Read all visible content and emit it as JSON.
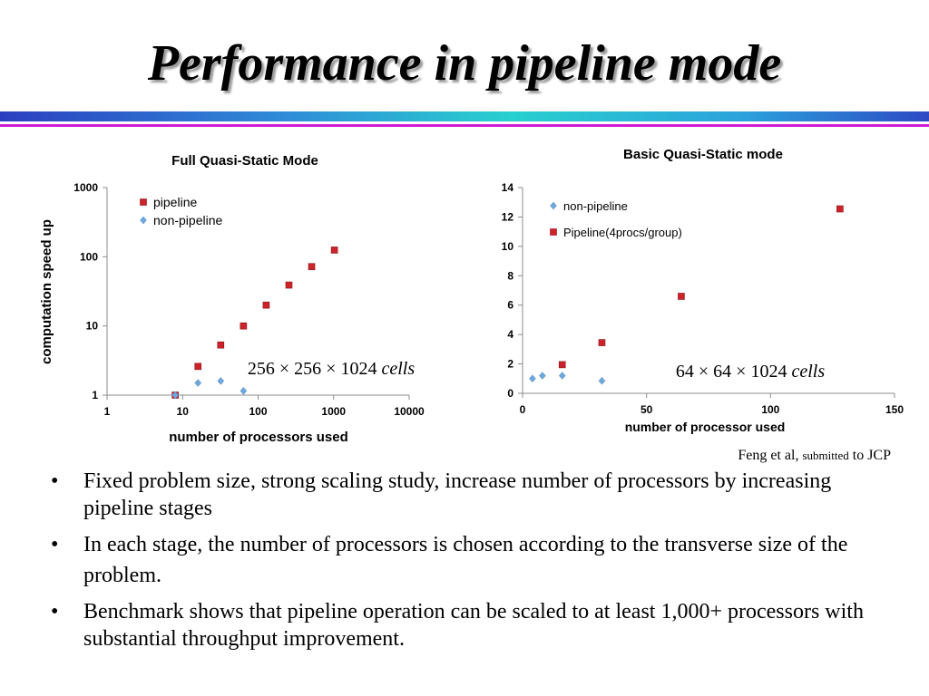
{
  "slide": {
    "title": "Performance in pipeline mode",
    "citation": {
      "author": "Feng et al,",
      "status": "submitted",
      "venue": "to JCP"
    },
    "bullets": [
      "Fixed problem size, strong scaling study, increase number of processors by increasing pipeline stages",
      "In each stage, the number of processors is chosen according to the transverse size of the problem.",
      "Benchmark shows that pipeline operation can be scaled to at least 1,000+ processors with substantial throughput improvement."
    ],
    "bullet_symbol": "•",
    "colors": {
      "pipeline": "#cc2229",
      "non_pipeline": "#6fa8dc",
      "rule_magenta": "#cf1bd3",
      "rule_blue": "#2f8ad8"
    }
  },
  "chart_data": [
    {
      "type": "scatter",
      "title": "Full Quasi-Static Mode",
      "xlabel": "number of processors used",
      "ylabel": "computation speed up",
      "x_scale": "log",
      "y_scale": "log",
      "xlim": [
        1,
        10000
      ],
      "ylim": [
        1,
        1000
      ],
      "x_ticks": [
        1,
        10,
        100,
        1000,
        10000
      ],
      "y_ticks": [
        1,
        10,
        100,
        1000
      ],
      "x_tick_labels": [
        "1",
        "10",
        "100",
        "1000",
        "10000"
      ],
      "y_tick_labels": [
        "1",
        "10",
        "100",
        "1000"
      ],
      "grid": false,
      "legend_position": "top-left",
      "annotation": {
        "dims": "256 × 256 × 1024",
        "unit": "cells"
      },
      "series": [
        {
          "name": "pipeline",
          "marker": "square",
          "color": "#cc2229",
          "x": [
            8,
            16,
            32,
            64,
            128,
            256,
            512,
            1024
          ],
          "y": [
            1.0,
            2.6,
            5.3,
            10.0,
            20.0,
            39.0,
            72.0,
            125.0
          ]
        },
        {
          "name": "non-pipeline",
          "marker": "diamond",
          "color": "#6fa8dc",
          "x": [
            8,
            16,
            32,
            64
          ],
          "y": [
            1.0,
            1.5,
            1.6,
            1.15
          ]
        }
      ]
    },
    {
      "type": "scatter",
      "title": "Basic Quasi-Static mode",
      "xlabel": "number of processor used",
      "ylabel": "",
      "x_scale": "linear",
      "y_scale": "linear",
      "xlim": [
        0,
        150
      ],
      "ylim": [
        0,
        14
      ],
      "x_ticks": [
        0,
        50,
        100,
        150
      ],
      "y_ticks": [
        0,
        2,
        4,
        6,
        8,
        10,
        12,
        14
      ],
      "x_tick_labels": [
        "0",
        "50",
        "100",
        "150"
      ],
      "y_tick_labels": [
        "0",
        "2",
        "4",
        "6",
        "8",
        "10",
        "12",
        "14"
      ],
      "grid": false,
      "legend_position": "top-left",
      "annotation": {
        "dims": "64 × 64 × 1024",
        "unit": "cells"
      },
      "series": [
        {
          "name": "non-pipeline",
          "marker": "diamond",
          "color": "#6fa8dc",
          "x": [
            4,
            8,
            16,
            32
          ],
          "y": [
            1.0,
            1.2,
            1.2,
            0.85
          ]
        },
        {
          "name": "Pipeline(4procs/group)",
          "marker": "square",
          "color": "#cc2229",
          "x": [
            16,
            32,
            64,
            128
          ],
          "y": [
            1.95,
            3.45,
            6.6,
            12.55
          ]
        }
      ]
    }
  ]
}
